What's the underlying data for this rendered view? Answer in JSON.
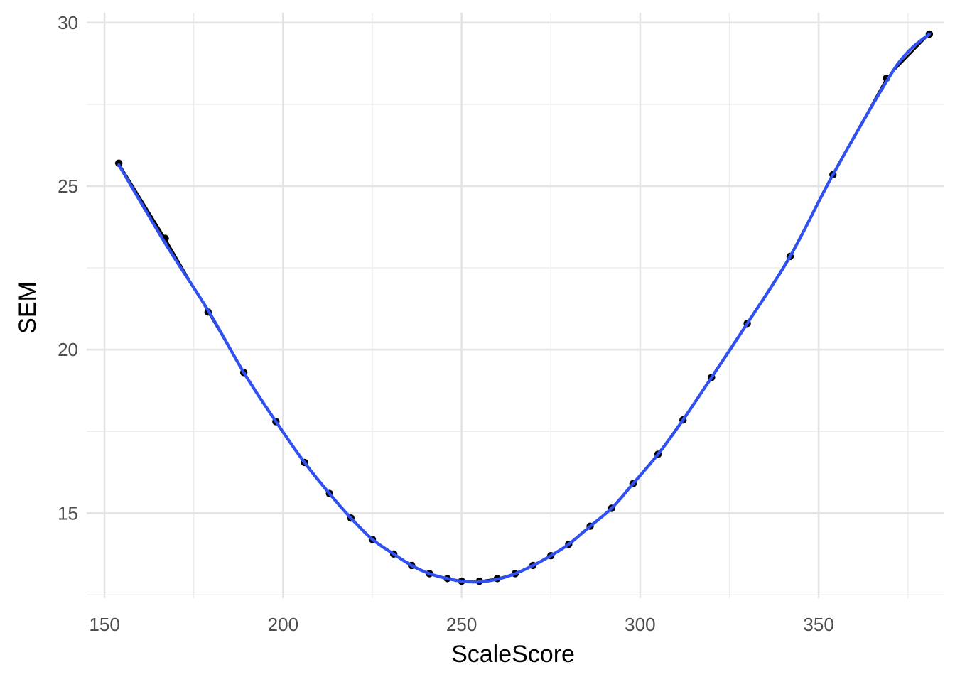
{
  "chart_data": {
    "type": "line",
    "xlabel": "ScaleScore",
    "ylabel": "SEM",
    "xlim": [
      145,
      385
    ],
    "ylim": [
      12.4,
      30.3
    ],
    "x_ticks": [
      150,
      200,
      250,
      300,
      350
    ],
    "y_ticks": [
      15,
      20,
      25,
      30
    ],
    "x_minor_ticks": [
      175,
      225,
      275,
      325,
      375
    ],
    "y_minor_ticks": [
      12.5,
      17.5,
      22.5,
      27.5
    ],
    "grid": true,
    "series": [
      {
        "style": "points-connected",
        "color": "#000000",
        "x": [
          154,
          167,
          179,
          189,
          198,
          206,
          213,
          219,
          225,
          231,
          236,
          241,
          246,
          250,
          255,
          260,
          265,
          270,
          275,
          280,
          286,
          292,
          298,
          305,
          312,
          320,
          330,
          342,
          354,
          369,
          381
        ],
        "y": [
          25.7,
          23.4,
          21.15,
          19.3,
          17.8,
          16.55,
          15.6,
          14.85,
          14.2,
          13.75,
          13.4,
          13.15,
          13.0,
          12.92,
          12.92,
          13.0,
          13.15,
          13.4,
          13.7,
          14.05,
          14.6,
          15.15,
          15.9,
          16.8,
          17.85,
          19.15,
          20.8,
          22.85,
          25.35,
          28.3,
          29.65
        ]
      },
      {
        "style": "smooth-fit",
        "color": "#3050f0",
        "x": [
          154,
          167,
          179,
          189,
          198,
          206,
          213,
          219,
          225,
          231,
          236,
          241,
          246,
          250,
          255,
          260,
          265,
          270,
          275,
          280,
          286,
          292,
          298,
          305,
          312,
          320,
          330,
          342,
          354,
          369,
          375,
          381
        ],
        "y": [
          25.65,
          23.25,
          21.2,
          19.3,
          17.8,
          16.55,
          15.6,
          14.85,
          14.2,
          13.75,
          13.4,
          13.15,
          13.0,
          12.92,
          12.9,
          12.98,
          13.15,
          13.4,
          13.7,
          14.05,
          14.6,
          15.15,
          15.9,
          16.8,
          17.85,
          19.15,
          20.8,
          22.85,
          25.35,
          28.2,
          29.1,
          29.65
        ]
      }
    ]
  }
}
